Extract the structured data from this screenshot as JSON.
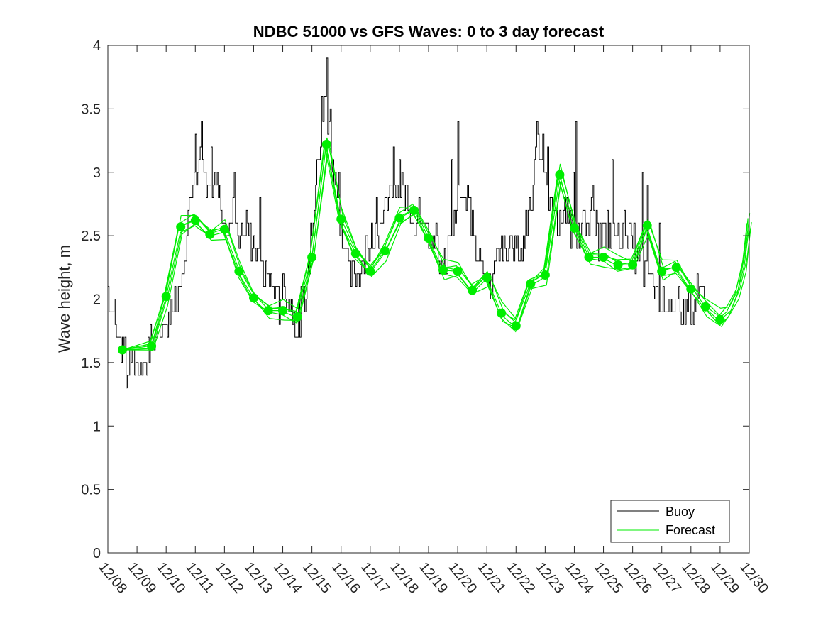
{
  "chart_data": {
    "type": "line",
    "title": "NDBC 51000 vs GFS Waves: 0 to 3 day forecast",
    "xlabel": "",
    "ylabel": "Wave height, m",
    "xlim": [
      0,
      22
    ],
    "ylim": [
      0,
      4
    ],
    "x_tick_labels": [
      "12/08",
      "12/09",
      "12/10",
      "12/11",
      "12/12",
      "12/13",
      "12/14",
      "12/15",
      "12/16",
      "12/17",
      "12/18",
      "12/19",
      "12/20",
      "12/21",
      "12/22",
      "12/23",
      "12/24",
      "12/25",
      "12/26",
      "12/27",
      "12/28",
      "12/29",
      "12/30"
    ],
    "y_ticks": [
      0,
      0.5,
      1,
      1.5,
      2,
      2.5,
      3,
      3.5,
      4
    ],
    "y_tick_labels": [
      "0",
      "0.5",
      "1",
      "1.5",
      "2",
      "2.5",
      "3",
      "3.5",
      "4"
    ],
    "grid": false,
    "legend_position": "bottom-right",
    "colors": {
      "buoy": "#000000",
      "forecast": "#00ee00"
    },
    "series": [
      {
        "name": "Buoy",
        "x_unit": "days since 12/08",
        "anchors": [
          [
            0.0,
            2.05
          ],
          [
            0.08,
            1.95
          ],
          [
            0.2,
            1.9
          ],
          [
            0.3,
            1.8
          ],
          [
            0.45,
            1.65
          ],
          [
            0.6,
            1.55
          ],
          [
            0.75,
            1.5
          ],
          [
            0.9,
            1.5
          ],
          [
            1.0,
            1.5
          ],
          [
            1.2,
            1.52
          ],
          [
            1.35,
            1.55
          ],
          [
            1.5,
            1.6
          ],
          [
            1.6,
            1.7
          ],
          [
            1.75,
            1.68
          ],
          [
            1.9,
            1.72
          ],
          [
            2.05,
            1.8
          ],
          [
            2.2,
            1.95
          ],
          [
            2.35,
            2.0
          ],
          [
            2.5,
            2.2
          ],
          [
            2.65,
            2.4
          ],
          [
            2.8,
            2.7
          ],
          [
            2.95,
            2.9
          ],
          [
            3.05,
            3.0
          ],
          [
            3.15,
            3.1
          ],
          [
            3.3,
            2.9
          ],
          [
            3.45,
            2.8
          ],
          [
            3.6,
            2.85
          ],
          [
            3.75,
            2.9
          ],
          [
            3.9,
            2.75
          ],
          [
            4.0,
            2.55
          ],
          [
            4.15,
            2.6
          ],
          [
            4.3,
            2.7
          ],
          [
            4.45,
            2.55
          ],
          [
            4.6,
            2.5
          ],
          [
            4.75,
            2.6
          ],
          [
            4.9,
            2.45
          ],
          [
            5.05,
            2.4
          ],
          [
            5.2,
            2.3
          ],
          [
            5.35,
            2.2
          ],
          [
            5.5,
            2.2
          ],
          [
            5.65,
            2.1
          ],
          [
            5.8,
            2.0
          ],
          [
            5.95,
            2.1
          ],
          [
            6.1,
            2.05
          ],
          [
            6.25,
            2.0
          ],
          [
            6.4,
            1.85
          ],
          [
            6.5,
            1.75
          ],
          [
            6.6,
            1.85
          ],
          [
            6.75,
            2.0
          ],
          [
            6.9,
            2.3
          ],
          [
            7.05,
            2.7
          ],
          [
            7.2,
            3.1
          ],
          [
            7.35,
            3.4
          ],
          [
            7.45,
            3.5
          ],
          [
            7.55,
            3.3
          ],
          [
            7.7,
            3.1
          ],
          [
            7.85,
            2.8
          ],
          [
            8.0,
            2.55
          ],
          [
            8.15,
            2.35
          ],
          [
            8.3,
            2.2
          ],
          [
            8.45,
            2.15
          ],
          [
            8.6,
            2.2
          ],
          [
            8.75,
            2.3
          ],
          [
            8.9,
            2.4
          ],
          [
            9.05,
            2.5
          ],
          [
            9.2,
            2.45
          ],
          [
            9.35,
            2.6
          ],
          [
            9.5,
            2.7
          ],
          [
            9.65,
            2.85
          ],
          [
            9.8,
            2.95
          ],
          [
            9.95,
            2.9
          ],
          [
            10.1,
            2.85
          ],
          [
            10.25,
            2.75
          ],
          [
            10.4,
            2.6
          ],
          [
            10.55,
            2.65
          ],
          [
            10.7,
            2.75
          ],
          [
            10.85,
            2.65
          ],
          [
            11.0,
            2.55
          ],
          [
            11.15,
            2.5
          ],
          [
            11.3,
            2.35
          ],
          [
            11.45,
            2.3
          ],
          [
            11.6,
            2.3
          ],
          [
            11.75,
            2.5
          ],
          [
            11.9,
            2.65
          ],
          [
            12.05,
            2.8
          ],
          [
            12.2,
            2.9
          ],
          [
            12.35,
            2.8
          ],
          [
            12.5,
            2.6
          ],
          [
            12.65,
            2.4
          ],
          [
            12.8,
            2.2
          ],
          [
            12.95,
            2.05
          ],
          [
            13.1,
            2.05
          ],
          [
            13.25,
            2.2
          ],
          [
            13.4,
            2.3
          ],
          [
            13.55,
            2.4
          ],
          [
            13.7,
            2.3
          ],
          [
            13.85,
            2.45
          ],
          [
            14.0,
            2.4
          ],
          [
            14.15,
            2.35
          ],
          [
            14.3,
            2.5
          ],
          [
            14.45,
            2.75
          ],
          [
            14.6,
            3.0
          ],
          [
            14.75,
            3.15
          ],
          [
            14.9,
            3.05
          ],
          [
            15.05,
            2.9
          ],
          [
            15.2,
            2.8
          ],
          [
            15.35,
            2.7
          ],
          [
            15.5,
            2.55
          ],
          [
            15.65,
            2.65
          ],
          [
            15.8,
            2.75
          ],
          [
            15.95,
            2.55
          ],
          [
            16.1,
            2.45
          ],
          [
            16.25,
            2.55
          ],
          [
            16.4,
            2.6
          ],
          [
            16.55,
            2.7
          ],
          [
            16.7,
            2.6
          ],
          [
            16.85,
            2.5
          ],
          [
            17.0,
            2.45
          ],
          [
            17.15,
            2.55
          ],
          [
            17.3,
            2.5
          ],
          [
            17.45,
            2.45
          ],
          [
            17.6,
            2.5
          ],
          [
            17.75,
            2.6
          ],
          [
            17.9,
            2.5
          ],
          [
            18.05,
            2.35
          ],
          [
            18.2,
            2.3
          ],
          [
            18.35,
            2.25
          ],
          [
            18.5,
            2.2
          ],
          [
            18.65,
            2.15
          ],
          [
            18.8,
            2.1
          ],
          [
            18.95,
            2.0
          ],
          [
            19.1,
            2.0
          ],
          [
            19.25,
            1.95
          ],
          [
            19.4,
            1.9
          ],
          [
            19.55,
            1.9
          ],
          [
            19.7,
            1.85
          ],
          [
            19.85,
            1.85
          ],
          [
            20.0,
            1.9
          ],
          [
            20.15,
            1.95
          ],
          [
            20.3,
            2.0
          ],
          [
            20.45,
            2.0
          ]
        ],
        "spikes": [
          [
            3.2,
            3.4
          ],
          [
            3.0,
            3.3
          ],
          [
            3.55,
            3.2
          ],
          [
            4.35,
            2.95
          ],
          [
            5.2,
            2.75
          ],
          [
            7.5,
            3.9
          ],
          [
            7.35,
            3.6
          ],
          [
            7.62,
            3.5
          ],
          [
            7.9,
            3.0
          ],
          [
            9.2,
            2.75
          ],
          [
            9.8,
            3.2
          ],
          [
            10.0,
            3.1
          ],
          [
            11.8,
            3.1
          ],
          [
            12.0,
            3.4
          ],
          [
            14.7,
            3.4
          ],
          [
            14.9,
            3.3
          ],
          [
            15.1,
            3.2
          ],
          [
            16.05,
            3.4
          ],
          [
            15.95,
            2.95
          ],
          [
            17.3,
            3.1
          ],
          [
            18.35,
            3.0
          ],
          [
            18.5,
            2.9
          ],
          [
            18.9,
            2.55
          ],
          [
            19.6,
            2.1
          ],
          [
            19.9,
            2.1
          ],
          [
            6.4,
            1.7
          ],
          [
            1.17,
            1.4
          ],
          [
            0.7,
            1.4
          ],
          [
            1.12,
            1.45
          ]
        ]
      },
      {
        "name": "Forecast",
        "x_unit": "days since 12/08",
        "markers": [
          [
            0.5,
            1.6
          ],
          [
            1.5,
            1.63
          ],
          [
            2.0,
            2.02
          ],
          [
            2.5,
            2.57
          ],
          [
            3.0,
            2.62
          ],
          [
            3.5,
            2.51
          ],
          [
            4.0,
            2.55
          ],
          [
            4.5,
            2.22
          ],
          [
            5.0,
            2.01
          ],
          [
            5.5,
            1.91
          ],
          [
            6.0,
            1.91
          ],
          [
            6.5,
            1.86
          ],
          [
            7.0,
            2.33
          ],
          [
            7.5,
            3.22
          ],
          [
            8.0,
            2.63
          ],
          [
            8.5,
            2.36
          ],
          [
            9.0,
            2.22
          ],
          [
            9.5,
            2.38
          ],
          [
            10.0,
            2.64
          ],
          [
            10.5,
            2.7
          ],
          [
            11.0,
            2.48
          ],
          [
            11.5,
            2.23
          ],
          [
            12.0,
            2.22
          ],
          [
            12.5,
            2.07
          ],
          [
            13.0,
            2.17
          ],
          [
            13.5,
            1.89
          ],
          [
            14.0,
            1.79
          ],
          [
            14.5,
            2.12
          ],
          [
            15.0,
            2.19
          ],
          [
            15.5,
            2.98
          ],
          [
            16.0,
            2.56
          ],
          [
            16.5,
            2.33
          ],
          [
            17.0,
            2.33
          ],
          [
            17.5,
            2.27
          ],
          [
            18.0,
            2.27
          ],
          [
            18.5,
            2.58
          ],
          [
            19.0,
            2.22
          ],
          [
            19.5,
            2.25
          ],
          [
            20.0,
            2.08
          ],
          [
            20.5,
            1.94
          ],
          [
            21.0,
            1.84
          ]
        ],
        "tail": [
          [
            21.0,
            1.84
          ],
          [
            21.3,
            1.9
          ],
          [
            21.6,
            2.05
          ],
          [
            21.85,
            2.3
          ],
          [
            22.0,
            2.6
          ]
        ]
      }
    ]
  },
  "legend": {
    "buoy_label": "Buoy",
    "forecast_label": "Forecast"
  }
}
